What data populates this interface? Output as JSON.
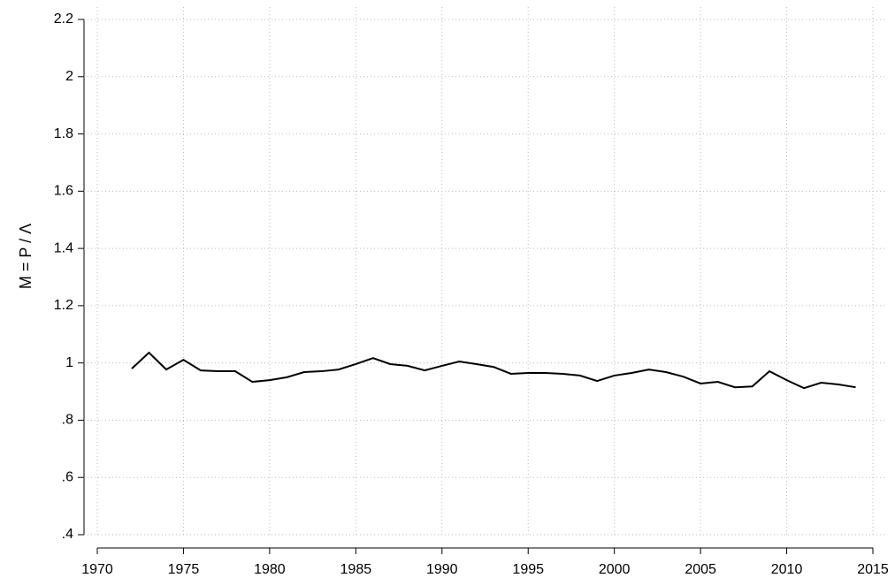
{
  "chart_data": {
    "type": "line",
    "ylabel": "M = P / Λ",
    "x": [
      1972,
      1973,
      1974,
      1975,
      1976,
      1977,
      1978,
      1979,
      1980,
      1981,
      1982,
      1983,
      1984,
      1985,
      1986,
      1987,
      1988,
      1989,
      1990,
      1991,
      1992,
      1993,
      1994,
      1995,
      1996,
      1997,
      1998,
      1999,
      2000,
      2001,
      2002,
      2003,
      2004,
      2005,
      2006,
      2007,
      2008,
      2009,
      2010,
      2011,
      2012,
      2013,
      2014
    ],
    "series": [
      {
        "color": "#000000",
        "values": [
          0.98,
          1.036,
          0.977,
          1.011,
          0.974,
          0.971,
          0.971,
          0.934,
          0.94,
          0.95,
          0.968,
          0.971,
          0.977,
          0.996,
          1.017,
          0.996,
          0.99,
          0.974,
          0.99,
          1.005,
          0.996,
          0.986,
          0.962,
          0.965,
          0.965,
          0.962,
          0.956,
          0.937,
          0.956,
          0.965,
          0.977,
          0.968,
          0.952,
          0.928,
          0.934,
          0.915,
          0.918,
          0.971,
          0.94,
          0.912,
          0.931,
          0.925,
          0.915
        ]
      }
    ],
    "xlim": [
      1970,
      2015
    ],
    "xticks": [
      1970,
      1975,
      1980,
      1985,
      1990,
      1995,
      2000,
      2005,
      2010,
      2015
    ],
    "ylim": [
      0.4,
      2.2
    ],
    "yticks": [
      {
        "value": 0.4,
        "label": ".4"
      },
      {
        "value": 0.6,
        "label": ".6"
      },
      {
        "value": 0.8,
        "label": ".8"
      },
      1,
      1.2,
      1.4,
      1.6,
      1.8,
      2,
      2.2
    ],
    "grid": true
  }
}
